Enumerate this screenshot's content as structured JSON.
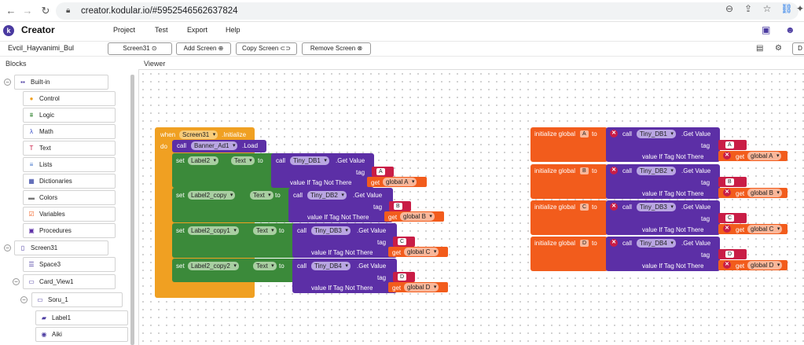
{
  "browser": {
    "url": "creator.kodular.io/#5952546562637824"
  },
  "app": {
    "logo_letter": "k",
    "brand": "Creator",
    "menu": [
      "Project",
      "Test",
      "Export",
      "Help"
    ]
  },
  "toolbar": {
    "project_name": "Evcil_Hayvanimi_Bul",
    "screen_select": "Screen31",
    "add_screen": "Add Screen",
    "copy_screen": "Copy Screen",
    "remove_screen": "Remove Screen",
    "right_label": "D"
  },
  "panels": {
    "blocks": "Blocks",
    "viewer": "Viewer"
  },
  "tree": {
    "builtin": "Built-in",
    "builtin_items": [
      "Control",
      "Logic",
      "Math",
      "Text",
      "Lists",
      "Dictionaries",
      "Colors",
      "Variables",
      "Procedures"
    ],
    "screen": "Screen31",
    "screen_children": [
      "Space3",
      "Card_View1",
      "Soru_1",
      "Label1",
      "Aiki"
    ]
  },
  "workspace": {
    "event": {
      "when": "when",
      "component": "Screen31",
      "event": ".Initialize",
      "do": "do"
    },
    "call_ad": {
      "call": "call",
      "component": "Banner_Ad1",
      "method": ".Load"
    },
    "set_rows": [
      {
        "set": "set",
        "label": "Label2",
        "prop": "Text",
        "to": "to",
        "call": "call",
        "db": "Tiny_DB1",
        "method": ".Get Value",
        "tag": "tag",
        "tag_value": "A",
        "default": "value If Tag Not There",
        "get": "get",
        "global": "global A"
      },
      {
        "set": "set",
        "label": "Label2_copy",
        "prop": "Text",
        "to": "to",
        "call": "call",
        "db": "Tiny_DB2",
        "method": ".Get Value",
        "tag": "tag",
        "tag_value": "B",
        "default": "value If Tag Not There",
        "get": "get",
        "global": "global B"
      },
      {
        "set": "set",
        "label": "Label2_copy1",
        "prop": "Text",
        "to": "to",
        "call": "call",
        "db": "Tiny_DB3",
        "method": ".Get Value",
        "tag": "tag",
        "tag_value": "C",
        "default": "value If Tag Not There",
        "get": "get",
        "global": "global C"
      },
      {
        "set": "set",
        "label": "Label2_copy2",
        "prop": "Text",
        "to": "to",
        "call": "call",
        "db": "Tiny_DB4",
        "method": ".Get Value",
        "tag": "tag",
        "tag_value": "D",
        "default": "value If Tag Not There",
        "get": "get",
        "global": "global D"
      }
    ],
    "globals": [
      {
        "init": "initialize global",
        "name": "A",
        "to": "to",
        "call": "call",
        "db": "Tiny_DB1",
        "method": ".Get Value",
        "tag": "tag",
        "tag_value": "A",
        "default": "value If Tag Not There",
        "get": "get",
        "global": "global A"
      },
      {
        "init": "initialize global",
        "name": "B",
        "to": "to",
        "call": "call",
        "db": "Tiny_DB2",
        "method": ".Get Value",
        "tag": "tag",
        "tag_value": "B",
        "default": "value If Tag Not There",
        "get": "get",
        "global": "global B"
      },
      {
        "init": "initialize global",
        "name": "C",
        "to": "to",
        "call": "call",
        "db": "Tiny_DB3",
        "method": ".Get Value",
        "tag": "tag",
        "tag_value": "C",
        "default": "value If Tag Not There",
        "get": "get",
        "global": "global C"
      },
      {
        "init": "initialize global",
        "name": "D",
        "to": "to",
        "call": "call",
        "db": "Tiny_DB4",
        "method": ".Get Value",
        "tag": "tag",
        "tag_value": "D",
        "default": "value If Tag Not There",
        "get": "get",
        "global": "global D"
      }
    ]
  }
}
